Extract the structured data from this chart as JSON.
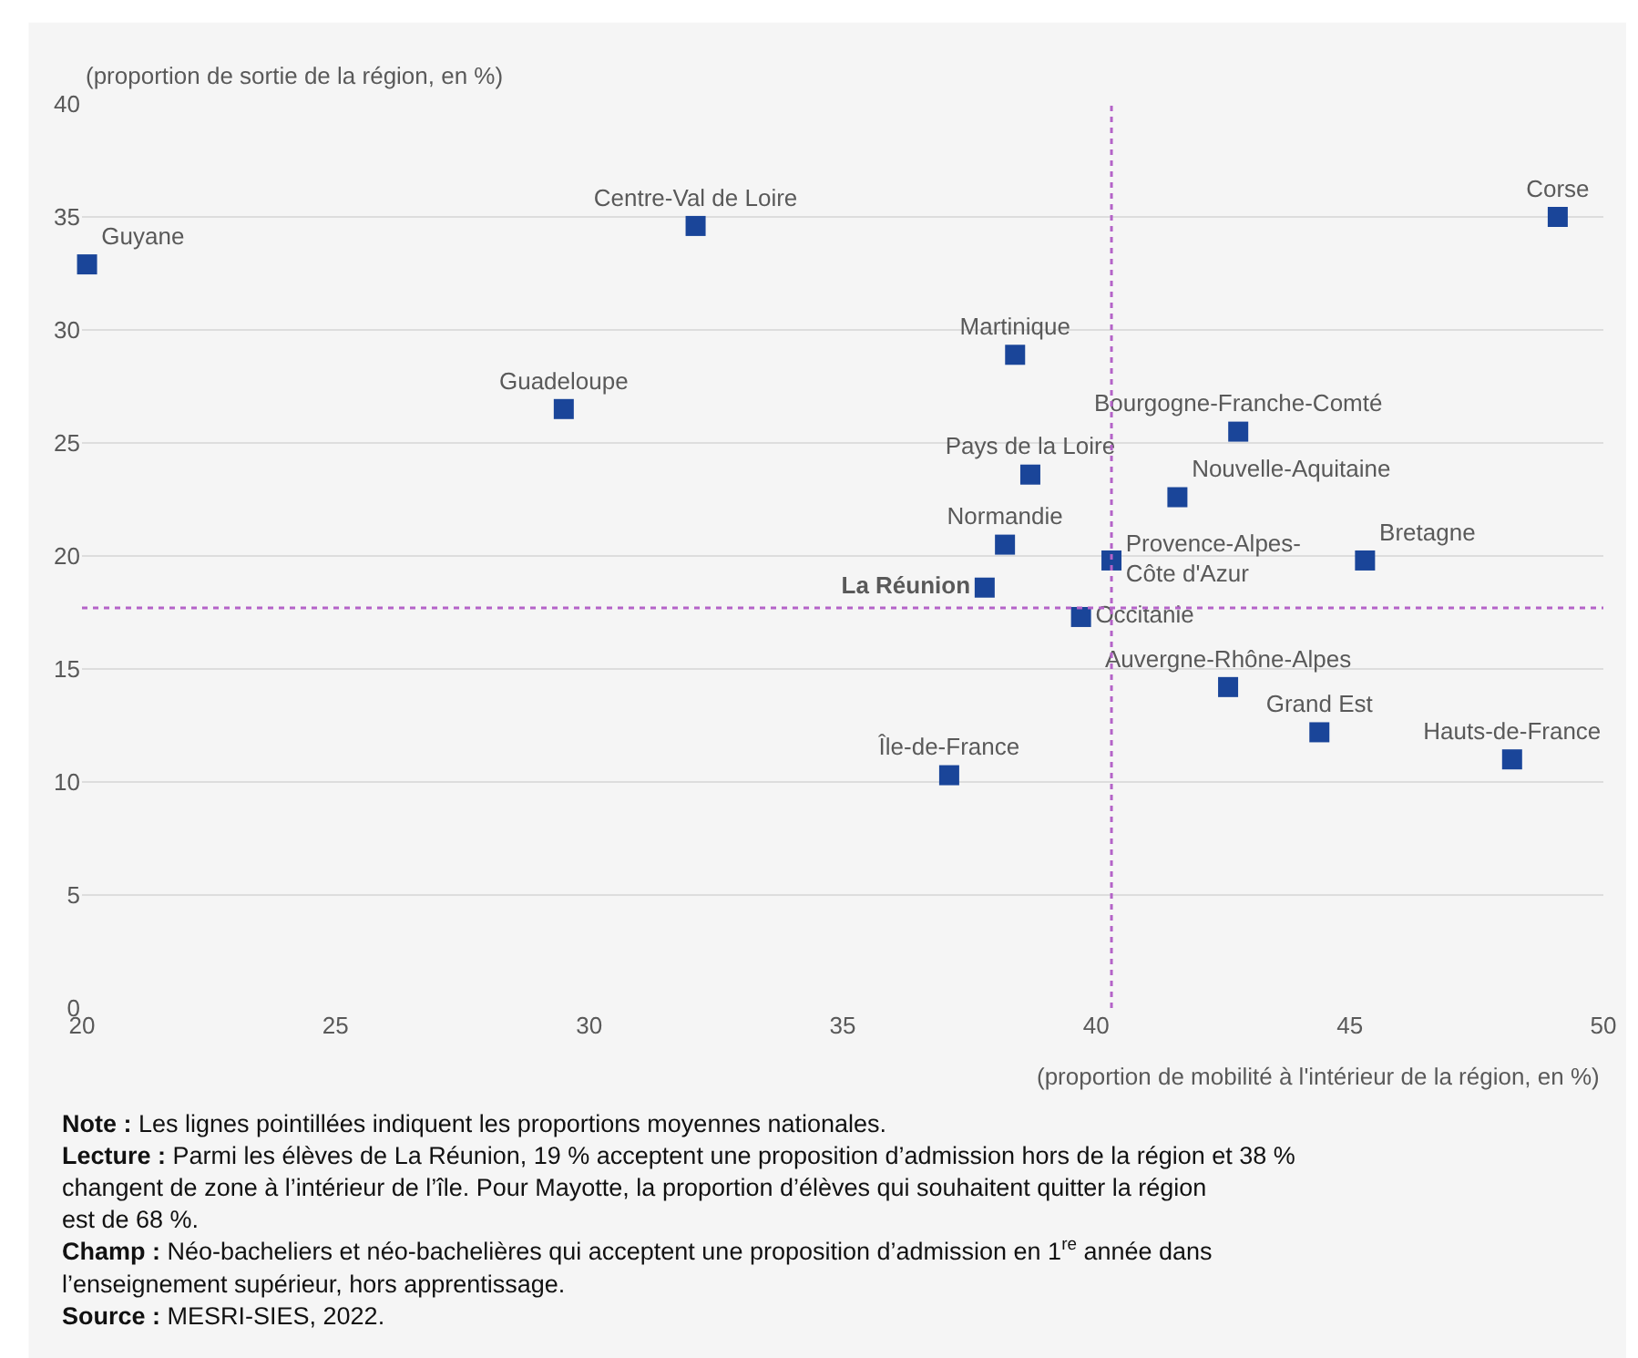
{
  "chart_data": {
    "type": "scatter",
    "ylabel": "(proportion de sortie de la région, en %)",
    "xlabel": "(proportion de mobilité à l'intérieur de la région, en %)",
    "xlim": [
      20,
      50
    ],
    "xticks": [
      20,
      25,
      30,
      35,
      40,
      45,
      50
    ],
    "ylim": [
      0,
      40
    ],
    "yticks": [
      0,
      5,
      10,
      15,
      20,
      25,
      30,
      35,
      40
    ],
    "grid": "y",
    "legend": false,
    "marker": "square",
    "series": [
      {
        "name": "Guyane",
        "color": "#1a4599",
        "x": [
          20.1
        ],
        "values": [
          32.9
        ]
      },
      {
        "name": "Centre-Val de Loire",
        "color": "#1a4599",
        "x": [
          32.1
        ],
        "values": [
          34.6
        ]
      },
      {
        "name": "Guadeloupe",
        "color": "#1a4599",
        "x": [
          29.5
        ],
        "values": [
          26.5
        ]
      },
      {
        "name": "Corse",
        "color": "#1a4599",
        "x": [
          49.1
        ],
        "values": [
          35.0
        ]
      },
      {
        "name": "Martinique",
        "color": "#1a4599",
        "x": [
          38.4
        ],
        "values": [
          28.9
        ]
      },
      {
        "name": "Bourgogne-Franche-Comté",
        "color": "#1a4599",
        "x": [
          42.8
        ],
        "values": [
          25.5
        ]
      },
      {
        "name": "Pays de la Loire",
        "color": "#1a4599",
        "x": [
          38.7
        ],
        "values": [
          23.6
        ]
      },
      {
        "name": "Nouvelle-Aquitaine",
        "color": "#1a4599",
        "x": [
          41.6
        ],
        "values": [
          22.6
        ]
      },
      {
        "name": "Normandie",
        "color": "#1a4599",
        "x": [
          38.2
        ],
        "values": [
          20.5
        ]
      },
      {
        "name": "Provence-Alpes-Côte d'Azur",
        "color": "#1a4599",
        "x": [
          40.3
        ],
        "values": [
          19.8
        ]
      },
      {
        "name": "Bretagne",
        "color": "#1a4599",
        "x": [
          45.3
        ],
        "values": [
          19.8
        ]
      },
      {
        "name": "La Réunion",
        "color": "#1a4599",
        "x": [
          37.8
        ],
        "values": [
          18.6
        ]
      },
      {
        "name": "Occitanie",
        "color": "#1a4599",
        "x": [
          39.7
        ],
        "values": [
          17.3
        ]
      },
      {
        "name": "Auvergne-Rhône-Alpes",
        "color": "#1a4599",
        "x": [
          42.6
        ],
        "values": [
          14.2
        ]
      },
      {
        "name": "Grand Est",
        "color": "#1a4599",
        "x": [
          44.4
        ],
        "values": [
          12.2
        ]
      },
      {
        "name": "Hauts-de-France",
        "color": "#1a4599",
        "x": [
          48.2
        ],
        "values": [
          11.0
        ]
      },
      {
        "name": "Île-de-France",
        "color": "#1a4599",
        "x": [
          37.1
        ],
        "values": [
          10.3
        ]
      }
    ],
    "ref_lines": [
      {
        "axis": "x",
        "value": 40.3,
        "color": "#b463c8",
        "line_style": "dotted"
      },
      {
        "axis": "y",
        "value": 17.7,
        "color": "#b463c8",
        "line_style": "dotted"
      }
    ],
    "annotations": [
      "Note : Les lignes pointillées indiquent les proportions moyennes nationales.",
      "Lecture : Parmi les élèves de La Réunion, 19 % acceptent une proposition d’admission hors de la région et 38 % changent de zone à l’intérieur de l’île. Pour Mayotte, la proportion d’élèves qui souhaitent quitter la région est de 68 %.",
      "Champ : Néo-bacheliers et néo-bachelières qui acceptent une proposition d’admission en 1$^{re}$ année dans l’enseignement supérieur, hors apprentissage.",
      "Source : MESRI-SIES, 2022."
    ]
  }
}
